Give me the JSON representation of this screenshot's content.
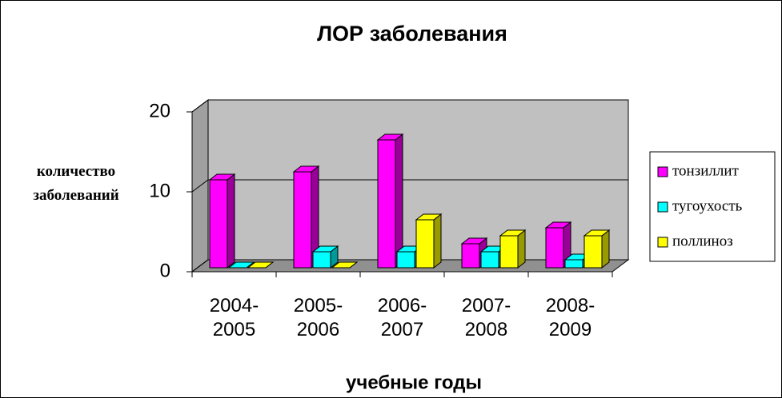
{
  "chart_data": {
    "type": "bar3d",
    "title": "ЛОР заболевания",
    "y_label": "количество заболеваний",
    "x_label": "учебные годы",
    "categories": [
      "2004-2005",
      "2005-2006",
      "2006-2007",
      "2007-2008",
      "2008-2009"
    ],
    "series": [
      {
        "name": "тонзиллит",
        "color": "#ff00ff",
        "values": [
          11,
          12,
          16,
          3,
          5
        ]
      },
      {
        "name": "тугоухость",
        "color": "#00ffff",
        "values": [
          0,
          2,
          2,
          2,
          1
        ]
      },
      {
        "name": "поллиноз",
        "color": "#ffff00",
        "values": [
          0,
          0,
          6,
          4,
          4
        ]
      }
    ],
    "ylim": [
      0,
      20
    ],
    "yticks": [
      0,
      10,
      20
    ],
    "grid": true,
    "legend": "right"
  }
}
